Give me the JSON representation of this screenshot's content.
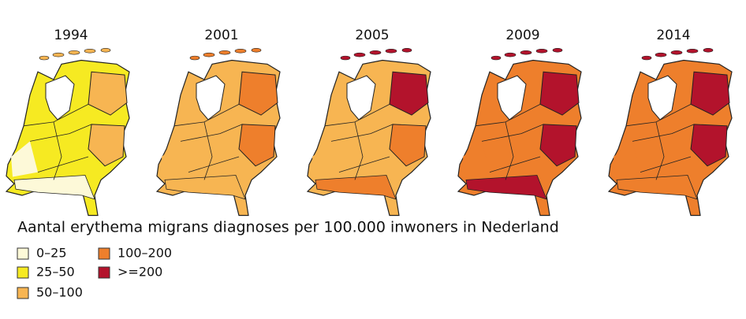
{
  "maps": [
    {
      "year": "1994"
    },
    {
      "year": "2001"
    },
    {
      "year": "2005"
    },
    {
      "year": "2009"
    },
    {
      "year": "2014"
    }
  ],
  "legend": {
    "title": "Aantal erythema migrans diagnoses per 100.000 inwoners in Nederland",
    "items": [
      {
        "label": "0–25",
        "color": "#fdf9d8"
      },
      {
        "label": "25–50",
        "color": "#f6ea22"
      },
      {
        "label": "50–100",
        "color": "#f7b552"
      },
      {
        "label": "100–200",
        "color": "#ee7f2c"
      },
      {
        "label": ">=200",
        "color": "#b3132c"
      }
    ]
  }
}
